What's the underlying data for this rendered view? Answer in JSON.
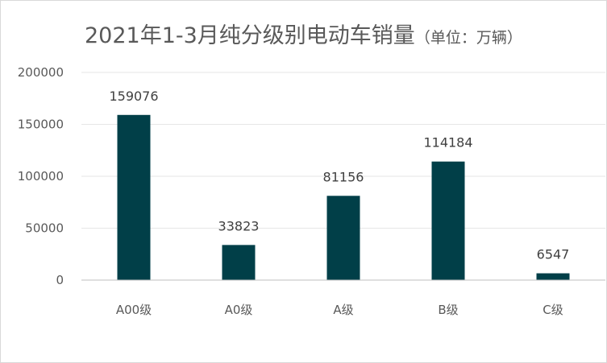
{
  "chart_data": {
    "type": "bar",
    "title": "2021年1-3月纯分级别电动车销量",
    "title_unit": "（单位：万辆）",
    "categories": [
      "A00级",
      "A0级",
      "A级",
      "B级",
      "C级"
    ],
    "series": [
      {
        "values": [
          159076,
          33823,
          81156,
          114184,
          6547
        ]
      }
    ],
    "yticks": [
      0,
      50000,
      100000,
      150000,
      200000
    ],
    "ylim": [
      0,
      200000
    ],
    "grid": true,
    "bar_color": "#013f48",
    "grid_color": "#e6e6e6",
    "axis_color": "#bfbfbf"
  }
}
